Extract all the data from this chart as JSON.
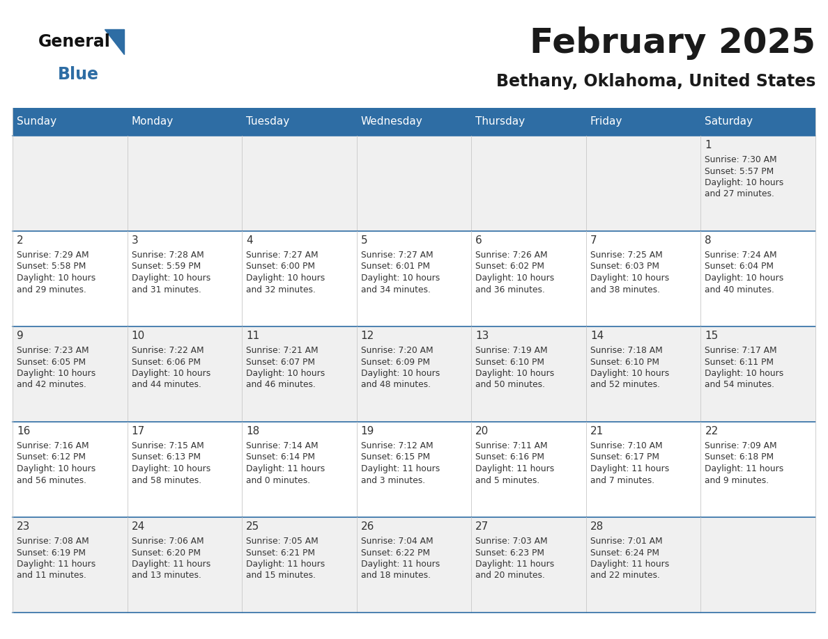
{
  "title": "February 2025",
  "subtitle": "Bethany, Oklahoma, United States",
  "days_of_week": [
    "Sunday",
    "Monday",
    "Tuesday",
    "Wednesday",
    "Thursday",
    "Friday",
    "Saturday"
  ],
  "header_bg": "#2E6DA4",
  "header_text": "#FFFFFF",
  "cell_bg_odd": "#F0F0F0",
  "cell_bg_even": "#FFFFFF",
  "row_separator_color": "#2E6DA4",
  "col_separator_color": "#C8C8C8",
  "day_num_color": "#333333",
  "info_color": "#333333",
  "title_color": "#1a1a1a",
  "subtitle_color": "#1a1a1a",
  "logo_general_color": "#111111",
  "logo_blue_color": "#2E6DA4",
  "calendar_data": [
    [
      null,
      null,
      null,
      null,
      null,
      null,
      {
        "day": "1",
        "sunrise": "7:30 AM",
        "sunset": "5:57 PM",
        "daylight_line1": "Daylight: 10 hours",
        "daylight_line2": "and 27 minutes."
      }
    ],
    [
      {
        "day": "2",
        "sunrise": "7:29 AM",
        "sunset": "5:58 PM",
        "daylight_line1": "Daylight: 10 hours",
        "daylight_line2": "and 29 minutes."
      },
      {
        "day": "3",
        "sunrise": "7:28 AM",
        "sunset": "5:59 PM",
        "daylight_line1": "Daylight: 10 hours",
        "daylight_line2": "and 31 minutes."
      },
      {
        "day": "4",
        "sunrise": "7:27 AM",
        "sunset": "6:00 PM",
        "daylight_line1": "Daylight: 10 hours",
        "daylight_line2": "and 32 minutes."
      },
      {
        "day": "5",
        "sunrise": "7:27 AM",
        "sunset": "6:01 PM",
        "daylight_line1": "Daylight: 10 hours",
        "daylight_line2": "and 34 minutes."
      },
      {
        "day": "6",
        "sunrise": "7:26 AM",
        "sunset": "6:02 PM",
        "daylight_line1": "Daylight: 10 hours",
        "daylight_line2": "and 36 minutes."
      },
      {
        "day": "7",
        "sunrise": "7:25 AM",
        "sunset": "6:03 PM",
        "daylight_line1": "Daylight: 10 hours",
        "daylight_line2": "and 38 minutes."
      },
      {
        "day": "8",
        "sunrise": "7:24 AM",
        "sunset": "6:04 PM",
        "daylight_line1": "Daylight: 10 hours",
        "daylight_line2": "and 40 minutes."
      }
    ],
    [
      {
        "day": "9",
        "sunrise": "7:23 AM",
        "sunset": "6:05 PM",
        "daylight_line1": "Daylight: 10 hours",
        "daylight_line2": "and 42 minutes."
      },
      {
        "day": "10",
        "sunrise": "7:22 AM",
        "sunset": "6:06 PM",
        "daylight_line1": "Daylight: 10 hours",
        "daylight_line2": "and 44 minutes."
      },
      {
        "day": "11",
        "sunrise": "7:21 AM",
        "sunset": "6:07 PM",
        "daylight_line1": "Daylight: 10 hours",
        "daylight_line2": "and 46 minutes."
      },
      {
        "day": "12",
        "sunrise": "7:20 AM",
        "sunset": "6:09 PM",
        "daylight_line1": "Daylight: 10 hours",
        "daylight_line2": "and 48 minutes."
      },
      {
        "day": "13",
        "sunrise": "7:19 AM",
        "sunset": "6:10 PM",
        "daylight_line1": "Daylight: 10 hours",
        "daylight_line2": "and 50 minutes."
      },
      {
        "day": "14",
        "sunrise": "7:18 AM",
        "sunset": "6:10 PM",
        "daylight_line1": "Daylight: 10 hours",
        "daylight_line2": "and 52 minutes."
      },
      {
        "day": "15",
        "sunrise": "7:17 AM",
        "sunset": "6:11 PM",
        "daylight_line1": "Daylight: 10 hours",
        "daylight_line2": "and 54 minutes."
      }
    ],
    [
      {
        "day": "16",
        "sunrise": "7:16 AM",
        "sunset": "6:12 PM",
        "daylight_line1": "Daylight: 10 hours",
        "daylight_line2": "and 56 minutes."
      },
      {
        "day": "17",
        "sunrise": "7:15 AM",
        "sunset": "6:13 PM",
        "daylight_line1": "Daylight: 10 hours",
        "daylight_line2": "and 58 minutes."
      },
      {
        "day": "18",
        "sunrise": "7:14 AM",
        "sunset": "6:14 PM",
        "daylight_line1": "Daylight: 11 hours",
        "daylight_line2": "and 0 minutes."
      },
      {
        "day": "19",
        "sunrise": "7:12 AM",
        "sunset": "6:15 PM",
        "daylight_line1": "Daylight: 11 hours",
        "daylight_line2": "and 3 minutes."
      },
      {
        "day": "20",
        "sunrise": "7:11 AM",
        "sunset": "6:16 PM",
        "daylight_line1": "Daylight: 11 hours",
        "daylight_line2": "and 5 minutes."
      },
      {
        "day": "21",
        "sunrise": "7:10 AM",
        "sunset": "6:17 PM",
        "daylight_line1": "Daylight: 11 hours",
        "daylight_line2": "and 7 minutes."
      },
      {
        "day": "22",
        "sunrise": "7:09 AM",
        "sunset": "6:18 PM",
        "daylight_line1": "Daylight: 11 hours",
        "daylight_line2": "and 9 minutes."
      }
    ],
    [
      {
        "day": "23",
        "sunrise": "7:08 AM",
        "sunset": "6:19 PM",
        "daylight_line1": "Daylight: 11 hours",
        "daylight_line2": "and 11 minutes."
      },
      {
        "day": "24",
        "sunrise": "7:06 AM",
        "sunset": "6:20 PM",
        "daylight_line1": "Daylight: 11 hours",
        "daylight_line2": "and 13 minutes."
      },
      {
        "day": "25",
        "sunrise": "7:05 AM",
        "sunset": "6:21 PM",
        "daylight_line1": "Daylight: 11 hours",
        "daylight_line2": "and 15 minutes."
      },
      {
        "day": "26",
        "sunrise": "7:04 AM",
        "sunset": "6:22 PM",
        "daylight_line1": "Daylight: 11 hours",
        "daylight_line2": "and 18 minutes."
      },
      {
        "day": "27",
        "sunrise": "7:03 AM",
        "sunset": "6:23 PM",
        "daylight_line1": "Daylight: 11 hours",
        "daylight_line2": "and 20 minutes."
      },
      {
        "day": "28",
        "sunrise": "7:01 AM",
        "sunset": "6:24 PM",
        "daylight_line1": "Daylight: 11 hours",
        "daylight_line2": "and 22 minutes."
      },
      null
    ]
  ],
  "fig_width": 11.88,
  "fig_height": 9.18,
  "dpi": 100
}
